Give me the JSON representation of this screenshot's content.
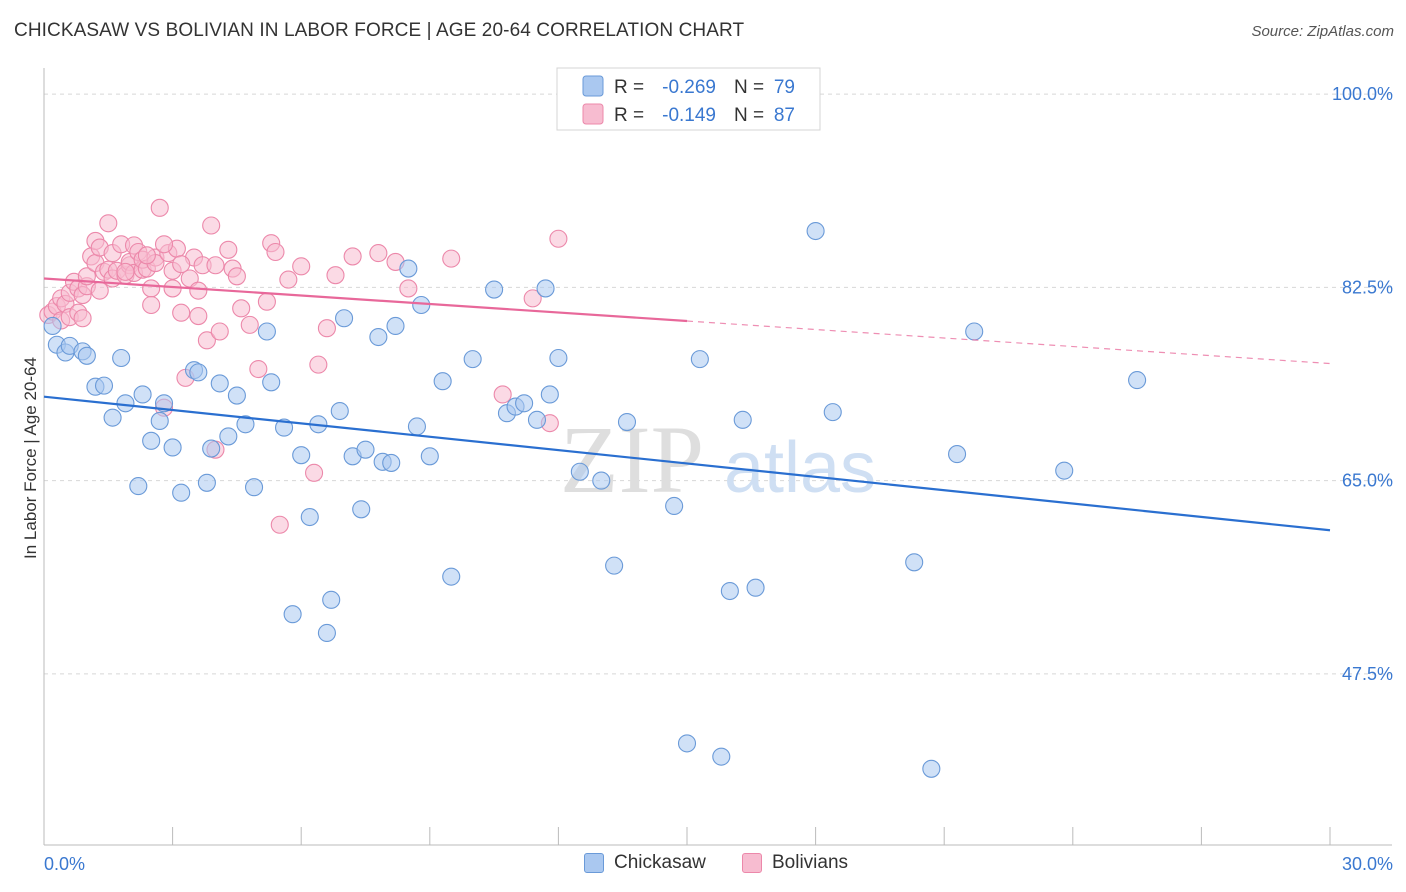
{
  "title": "CHICKASAW VS BOLIVIAN IN LABOR FORCE | AGE 20-64 CORRELATION CHART",
  "source": "Source: ZipAtlas.com",
  "watermark": {
    "zip": "ZIP",
    "atlas": "atlas"
  },
  "colors": {
    "chickasaw_fill": "#aac8f0",
    "chickasaw_stroke": "#6a9ad8",
    "chickasaw_line": "#2a6fd0",
    "bolivians_fill": "#f7bcd0",
    "bolivians_stroke": "#ec88aa",
    "bolivians_line": "#e8689a",
    "axis_label": "#3a78d0"
  },
  "stats_legend": [
    {
      "r_label": "R = ",
      "r_value": "-0.269",
      "n_label": "N = ",
      "n_value": "79"
    },
    {
      "r_label": "R = ",
      "r_value": "-0.149",
      "n_label": "N = ",
      "n_value": "87"
    }
  ],
  "chart_data": {
    "type": "scatter",
    "title": "CHICKASAW VS BOLIVIAN IN LABOR FORCE | AGE 20-64 CORRELATION CHART",
    "xlabel": "",
    "ylabel": "In Labor Force | Age 20-64",
    "xlim": [
      0,
      30
    ],
    "ylim": [
      32,
      102
    ],
    "x_tick_labels": [
      "0.0%",
      "30.0%"
    ],
    "y_ticks": [
      47.5,
      65.0,
      82.5,
      100.0
    ],
    "y_tick_labels": [
      "47.5%",
      "65.0%",
      "82.5%",
      "100.0%"
    ],
    "grid": true,
    "legend_position": "bottom",
    "series": [
      {
        "name": "Chickasaw",
        "r": -0.269,
        "n": 79,
        "trend": {
          "x": [
            0,
            30
          ],
          "y": [
            72.6,
            60.5
          ],
          "dashed_from": null
        },
        "points": [
          [
            0.2,
            79.0
          ],
          [
            0.3,
            77.3
          ],
          [
            0.5,
            76.6
          ],
          [
            0.6,
            77.2
          ],
          [
            0.9,
            76.7
          ],
          [
            1.0,
            76.3
          ],
          [
            1.2,
            73.5
          ],
          [
            1.4,
            73.6
          ],
          [
            1.6,
            70.7
          ],
          [
            1.8,
            76.1
          ],
          [
            1.9,
            72.0
          ],
          [
            2.2,
            64.5
          ],
          [
            2.3,
            72.8
          ],
          [
            2.5,
            68.6
          ],
          [
            2.7,
            70.4
          ],
          [
            2.8,
            72.0
          ],
          [
            3.0,
            68.0
          ],
          [
            3.2,
            63.9
          ],
          [
            3.5,
            75.0
          ],
          [
            3.6,
            74.8
          ],
          [
            3.8,
            64.8
          ],
          [
            3.9,
            67.9
          ],
          [
            4.1,
            73.8
          ],
          [
            4.3,
            69.0
          ],
          [
            4.5,
            72.7
          ],
          [
            4.7,
            70.1
          ],
          [
            4.9,
            64.4
          ],
          [
            5.2,
            78.5
          ],
          [
            5.3,
            73.9
          ],
          [
            5.6,
            69.8
          ],
          [
            5.8,
            52.9
          ],
          [
            6.0,
            67.3
          ],
          [
            6.2,
            61.7
          ],
          [
            6.4,
            70.1
          ],
          [
            6.6,
            51.2
          ],
          [
            6.7,
            54.2
          ],
          [
            6.9,
            71.3
          ],
          [
            7.0,
            79.7
          ],
          [
            7.2,
            67.2
          ],
          [
            7.4,
            62.4
          ],
          [
            7.5,
            67.8
          ],
          [
            7.8,
            78.0
          ],
          [
            7.9,
            66.7
          ],
          [
            8.1,
            66.6
          ],
          [
            8.2,
            79.0
          ],
          [
            8.5,
            84.2
          ],
          [
            8.7,
            69.9
          ],
          [
            8.8,
            80.9
          ],
          [
            9.0,
            67.2
          ],
          [
            9.3,
            74.0
          ],
          [
            9.5,
            56.3
          ],
          [
            10.0,
            76.0
          ],
          [
            10.5,
            82.3
          ],
          [
            10.8,
            71.1
          ],
          [
            11.0,
            71.7
          ],
          [
            11.2,
            72.0
          ],
          [
            11.5,
            70.5
          ],
          [
            11.7,
            82.4
          ],
          [
            11.8,
            72.8
          ],
          [
            12.0,
            76.1
          ],
          [
            12.5,
            65.8
          ],
          [
            13.0,
            65.0
          ],
          [
            13.3,
            57.3
          ],
          [
            13.6,
            70.3
          ],
          [
            14.7,
            62.7
          ],
          [
            15.0,
            41.2
          ],
          [
            15.3,
            76.0
          ],
          [
            15.8,
            40.0
          ],
          [
            16.0,
            55.0
          ],
          [
            16.3,
            70.5
          ],
          [
            16.6,
            55.3
          ],
          [
            18.0,
            87.6
          ],
          [
            18.4,
            71.2
          ],
          [
            20.3,
            57.6
          ],
          [
            20.7,
            38.9
          ],
          [
            21.3,
            67.4
          ],
          [
            21.7,
            78.5
          ],
          [
            23.8,
            65.9
          ],
          [
            25.5,
            74.1
          ]
        ]
      },
      {
        "name": "Bolivians",
        "r": -0.149,
        "n": 87,
        "trend": {
          "x": [
            0,
            30
          ],
          "y": [
            83.3,
            75.6
          ],
          "dashed_from": 15.0
        },
        "points": [
          [
            0.1,
            80.0
          ],
          [
            0.2,
            80.3
          ],
          [
            0.3,
            80.8
          ],
          [
            0.4,
            81.5
          ],
          [
            0.4,
            79.5
          ],
          [
            0.5,
            81.0
          ],
          [
            0.6,
            82.0
          ],
          [
            0.6,
            79.8
          ],
          [
            0.7,
            83.0
          ],
          [
            0.8,
            82.4
          ],
          [
            0.8,
            80.2
          ],
          [
            0.9,
            81.8
          ],
          [
            1.0,
            82.6
          ],
          [
            1.0,
            83.5
          ],
          [
            1.1,
            85.3
          ],
          [
            1.2,
            84.7
          ],
          [
            1.2,
            86.7
          ],
          [
            1.3,
            86.1
          ],
          [
            1.4,
            83.9
          ],
          [
            1.5,
            88.3
          ],
          [
            1.5,
            84.1
          ],
          [
            1.6,
            85.6
          ],
          [
            1.6,
            83.3
          ],
          [
            1.7,
            84.0
          ],
          [
            1.8,
            86.4
          ],
          [
            1.9,
            83.6
          ],
          [
            2.0,
            84.5
          ],
          [
            2.0,
            84.8
          ],
          [
            2.1,
            83.8
          ],
          [
            2.1,
            86.3
          ],
          [
            2.2,
            85.7
          ],
          [
            2.3,
            84.1
          ],
          [
            2.3,
            85.0
          ],
          [
            2.4,
            84.2
          ],
          [
            2.5,
            82.4
          ],
          [
            2.5,
            80.9
          ],
          [
            2.6,
            85.2
          ],
          [
            2.6,
            84.7
          ],
          [
            2.7,
            89.7
          ],
          [
            2.8,
            71.6
          ],
          [
            2.9,
            85.6
          ],
          [
            3.0,
            84.0
          ],
          [
            3.0,
            82.4
          ],
          [
            3.1,
            86.0
          ],
          [
            3.2,
            80.2
          ],
          [
            3.3,
            74.3
          ],
          [
            3.4,
            83.3
          ],
          [
            3.5,
            85.2
          ],
          [
            3.6,
            79.9
          ],
          [
            3.7,
            84.5
          ],
          [
            3.8,
            77.7
          ],
          [
            3.9,
            88.1
          ],
          [
            4.0,
            84.5
          ],
          [
            4.1,
            78.5
          ],
          [
            4.3,
            85.9
          ],
          [
            4.4,
            84.2
          ],
          [
            4.5,
            83.5
          ],
          [
            4.6,
            80.6
          ],
          [
            4.8,
            79.1
          ],
          [
            5.0,
            75.1
          ],
          [
            5.2,
            81.2
          ],
          [
            5.3,
            86.5
          ],
          [
            5.4,
            85.7
          ],
          [
            5.5,
            61.0
          ],
          [
            5.7,
            83.2
          ],
          [
            6.0,
            84.4
          ],
          [
            6.3,
            65.7
          ],
          [
            6.4,
            75.5
          ],
          [
            6.6,
            78.8
          ],
          [
            6.8,
            83.6
          ],
          [
            7.2,
            85.3
          ],
          [
            7.8,
            85.6
          ],
          [
            8.2,
            84.8
          ],
          [
            8.5,
            82.4
          ],
          [
            9.5,
            85.1
          ],
          [
            10.7,
            72.8
          ],
          [
            11.4,
            81.5
          ],
          [
            11.8,
            70.2
          ],
          [
            12.0,
            86.9
          ],
          [
            4.0,
            67.8
          ],
          [
            3.2,
            84.6
          ],
          [
            2.8,
            86.4
          ],
          [
            1.3,
            82.2
          ],
          [
            1.9,
            83.9
          ],
          [
            2.4,
            85.4
          ],
          [
            0.9,
            79.7
          ],
          [
            3.6,
            82.2
          ]
        ]
      }
    ]
  },
  "bottom_legend": [
    {
      "label": "Chickasaw"
    },
    {
      "label": "Bolivians"
    }
  ]
}
